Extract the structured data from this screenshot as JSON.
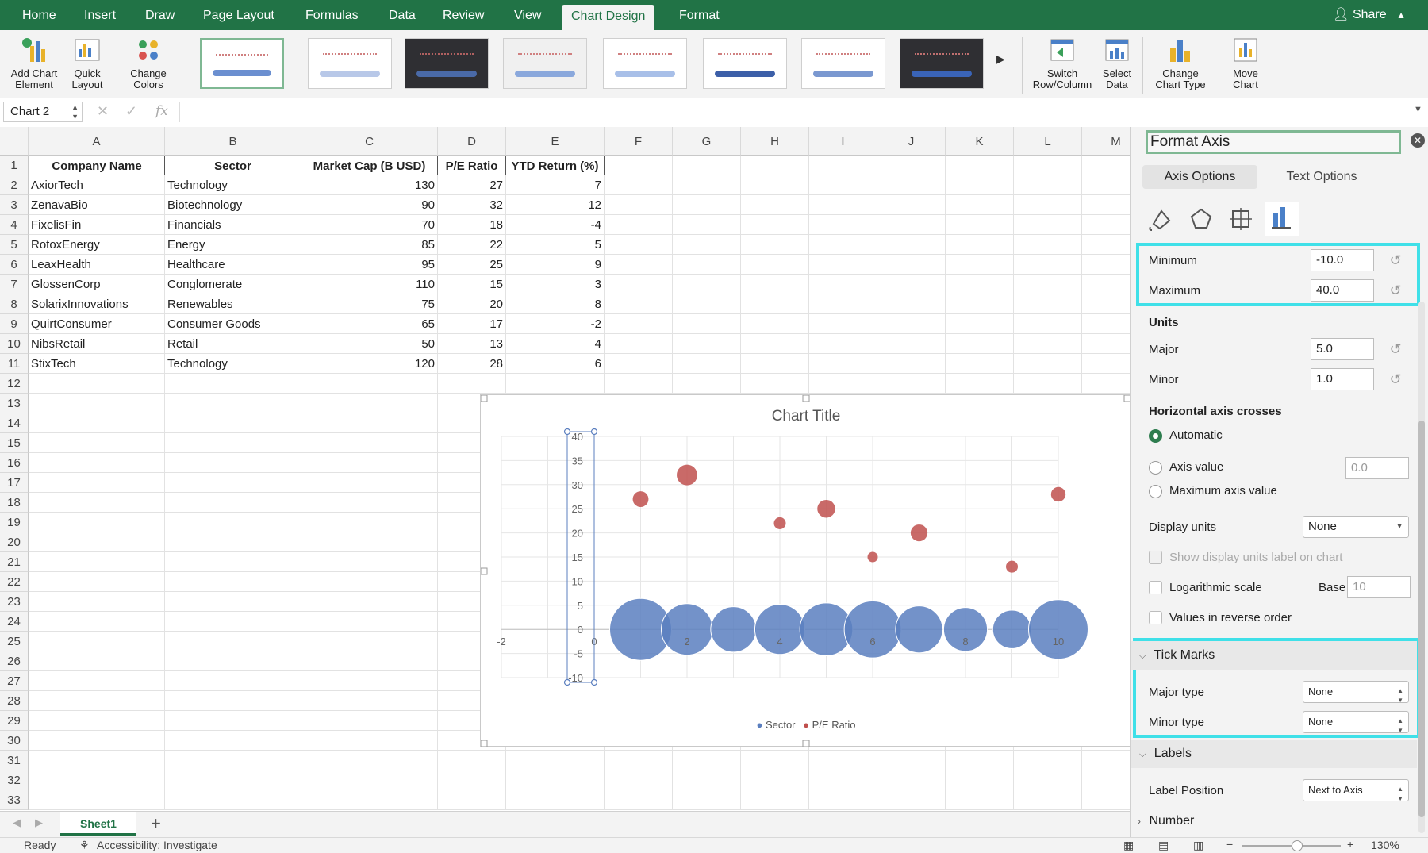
{
  "menu": {
    "items": [
      "Home",
      "Insert",
      "Draw",
      "Page Layout",
      "Formulas",
      "Data",
      "Review",
      "View",
      "Chart Design",
      "Format"
    ],
    "active": "Chart Design",
    "share_label": "Share"
  },
  "ribbon": {
    "add_chart_element": "Add Chart Element",
    "quick_layout": "Quick Layout",
    "change_colors": "Change Colors",
    "switch_row_column": "Switch Row/Column",
    "select_data": "Select Data",
    "change_chart_type": "Change Chart Type",
    "move_chart": "Move Chart"
  },
  "formula_bar": {
    "name_box": "Chart 2",
    "fx": "fx"
  },
  "sheet": {
    "columns": [
      "A",
      "B",
      "C",
      "D",
      "E",
      "F",
      "G",
      "H",
      "I",
      "J",
      "K",
      "L",
      "M"
    ],
    "headers": [
      "Company Name",
      "Sector",
      "Market Cap (B USD)",
      "P/E Ratio",
      "YTD Return (%)"
    ],
    "rows": [
      [
        "AxiorTech",
        "Technology",
        "130",
        "27",
        "7"
      ],
      [
        "ZenavaBio",
        "Biotechnology",
        "90",
        "32",
        "12"
      ],
      [
        "FixelisFin",
        "Financials",
        "70",
        "18",
        "-4"
      ],
      [
        "RotoxEnergy",
        "Energy",
        "85",
        "22",
        "5"
      ],
      [
        "LeaxHealth",
        "Healthcare",
        "95",
        "25",
        "9"
      ],
      [
        "GlossenCorp",
        "Conglomerate",
        "110",
        "15",
        "3"
      ],
      [
        "SolarixInnovations",
        "Renewables",
        "75",
        "20",
        "8"
      ],
      [
        "QuirtConsumer",
        "Consumer Goods",
        "65",
        "17",
        "-2"
      ],
      [
        "NibsRetail",
        "Retail",
        "50",
        "13",
        "4"
      ],
      [
        "StixTech",
        "Technology",
        "120",
        "28",
        "6"
      ]
    ],
    "row_numbers": [
      "1",
      "2",
      "3",
      "4",
      "5",
      "6",
      "7",
      "8",
      "9",
      "10",
      "11",
      "12",
      "13",
      "14",
      "15",
      "16",
      "17",
      "18",
      "19",
      "20",
      "21",
      "22",
      "23",
      "24",
      "25",
      "26",
      "27",
      "28",
      "29",
      "30",
      "31",
      "32",
      "33"
    ]
  },
  "chart_data": {
    "type": "scatter",
    "title": "Chart Title",
    "xlim": [
      -2,
      10
    ],
    "ylim": [
      -10,
      40
    ],
    "x_ticks": [
      "-2",
      "0",
      "2",
      "4",
      "6",
      "8",
      "10"
    ],
    "y_ticks": [
      "40",
      "35",
      "30",
      "25",
      "20",
      "15",
      "10",
      "5",
      "0",
      "-5",
      "-10"
    ],
    "legend_position": "bottom",
    "series": [
      {
        "name": "Sector",
        "color": "#5b7fbf",
        "points": [
          {
            "x": 1,
            "y": 0,
            "size": 130
          },
          {
            "x": 2,
            "y": 0,
            "size": 90
          },
          {
            "x": 3,
            "y": 0,
            "size": 70
          },
          {
            "x": 4,
            "y": 0,
            "size": 85
          },
          {
            "x": 5,
            "y": 0,
            "size": 95
          },
          {
            "x": 6,
            "y": 0,
            "size": 110
          },
          {
            "x": 7,
            "y": 0,
            "size": 75
          },
          {
            "x": 8,
            "y": 0,
            "size": 65
          },
          {
            "x": 9,
            "y": 0,
            "size": 50
          },
          {
            "x": 10,
            "y": 0,
            "size": 120
          }
        ]
      },
      {
        "name": "P/E Ratio",
        "color": "#c0504d",
        "points": [
          {
            "x": 1,
            "y": 27,
            "size": 7
          },
          {
            "x": 2,
            "y": 32,
            "size": 12
          },
          {
            "x": 4,
            "y": 22,
            "size": 4
          },
          {
            "x": 5,
            "y": 25,
            "size": 9
          },
          {
            "x": 6,
            "y": 15,
            "size": 3
          },
          {
            "x": 7,
            "y": 20,
            "size": 8
          },
          {
            "x": 9,
            "y": 13,
            "size": 4
          },
          {
            "x": 10,
            "y": 28,
            "size": 6
          }
        ]
      }
    ]
  },
  "pane": {
    "title": "Format Axis",
    "tab_axis": "Axis Options",
    "tab_text": "Text Options",
    "minimum_label": "Minimum",
    "minimum_value": "-10.0",
    "maximum_label": "Maximum",
    "maximum_value": "40.0",
    "units_label": "Units",
    "major_label": "Major",
    "major_value": "5.0",
    "minor_label": "Minor",
    "minor_value": "1.0",
    "crosses_label": "Horizontal axis crosses",
    "automatic_label": "Automatic",
    "axis_value_label": "Axis value",
    "axis_value_value": "0.0",
    "max_axis_value_label": "Maximum axis value",
    "display_units_label": "Display units",
    "display_units_value": "None",
    "show_units_label": "Show display units label on chart",
    "log_scale_label": "Logarithmic scale",
    "base_label": "Base",
    "base_value": "10",
    "reverse_label": "Values in reverse order",
    "tick_marks_label": "Tick Marks",
    "major_type_label": "Major type",
    "major_type_value": "None",
    "minor_type_label": "Minor type",
    "minor_type_value": "None",
    "labels_label": "Labels",
    "label_position_label": "Label Position",
    "label_position_value": "Next to Axis",
    "number_label": "Number"
  },
  "tabs": {
    "sheet1": "Sheet1",
    "add": "+"
  },
  "status": {
    "ready": "Ready",
    "accessibility": "Accessibility: Investigate",
    "zoom": "130%"
  }
}
